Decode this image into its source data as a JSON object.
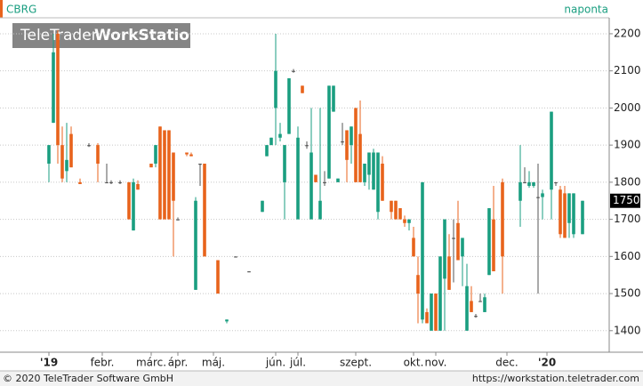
{
  "chart_data": {
    "type": "candlestick",
    "symbol": "CBRG",
    "period": "naponta",
    "watermark": [
      "TeleTrader",
      "WorkStation"
    ],
    "footer": {
      "copyright": "© 2020 TeleTrader Software GmbH",
      "url": "https://workstation.teletrader.com"
    },
    "up_color": "#1a9e80",
    "down_color": "#e8631c",
    "grid": true,
    "ylim": [
      1342,
      2243
    ],
    "yticks": [
      1400,
      1500,
      1600,
      1700,
      1800,
      1900,
      2000,
      2100,
      2200
    ],
    "xlim": [
      -10,
      127
    ],
    "xticks": [
      {
        "value": 1,
        "label": "'19"
      },
      {
        "value": 13,
        "label": "febr."
      },
      {
        "value": 24,
        "label": "márc."
      },
      {
        "value": 30,
        "label": "ápr."
      },
      {
        "value": 38,
        "label": "máj."
      },
      {
        "value": 52,
        "label": "jún."
      },
      {
        "value": 57,
        "label": "júl."
      },
      {
        "value": 70,
        "label": "szept."
      },
      {
        "value": 83,
        "label": "okt."
      },
      {
        "value": 88,
        "label": "nov."
      },
      {
        "value": 104,
        "label": "dec."
      },
      {
        "value": 113,
        "label": "'20"
      }
    ],
    "last_price": 1750,
    "x": [
      1,
      2,
      3,
      4,
      5,
      6,
      8,
      10,
      12,
      14,
      15,
      17,
      19,
      20,
      21,
      24,
      25,
      26,
      27,
      28,
      29,
      30,
      32,
      33,
      34,
      35,
      36,
      39,
      41,
      43,
      46,
      49,
      50,
      51,
      52,
      53,
      54,
      55,
      56,
      57,
      58,
      59,
      60,
      61,
      62,
      63,
      64,
      65,
      66,
      67,
      68,
      69,
      70,
      71,
      72,
      73,
      74,
      75,
      76,
      78,
      79,
      80,
      81,
      82,
      83,
      84,
      85,
      86,
      87,
      88,
      89,
      90,
      91,
      92,
      93,
      94,
      95,
      96,
      97,
      98,
      99,
      100,
      101,
      103,
      107,
      108,
      109,
      110,
      111,
      112,
      114,
      115,
      116,
      117,
      118,
      119,
      121
    ],
    "open": [
      1850,
      1960,
      2200,
      1900,
      1830,
      1930,
      1800,
      1900,
      1900,
      1800,
      1800,
      1800,
      1800,
      1670,
      1795,
      1850,
      1850,
      1950,
      1940,
      1940,
      1880,
      1700,
      1880,
      1875,
      1510,
      1850,
      1850,
      1590,
      1425,
      1600,
      1560,
      1720,
      1870,
      1900,
      2000,
      1920,
      1800,
      1930,
      2100,
      1700,
      2060,
      1900,
      1700,
      1820,
      1700,
      1800,
      1810,
      1990,
      1800,
      1910,
      1940,
      1900,
      2000,
      1930,
      1800,
      1820,
      1780,
      1720,
      1850,
      1750,
      1750,
      1730,
      1700,
      1690,
      1650,
      1550,
      1430,
      1450,
      1400,
      1500,
      1400,
      1540,
      1600,
      1650,
      1690,
      1600,
      1400,
      1480,
      1440,
      1480,
      1450,
      1550,
      1700,
      1800,
      1750,
      1800,
      1790,
      1790,
      1760,
      1760,
      1780,
      1800,
      1780,
      1770,
      1690,
      1660,
      1660
    ],
    "high": [
      1900,
      2200,
      2210,
      1950,
      1960,
      1950,
      1810,
      1905,
      1905,
      1850,
      1805,
      1805,
      1800,
      1810,
      1805,
      1850,
      1900,
      1950,
      1940,
      1940,
      1880,
      1705,
      1880,
      1880,
      1760,
      1850,
      1850,
      1590,
      1430,
      1600,
      1560,
      1750,
      1900,
      1920,
      2200,
      1960,
      1900,
      2080,
      2105,
      1950,
      2060,
      1910,
      2000,
      1820,
      2000,
      1830,
      2060,
      2060,
      1810,
      1960,
      1940,
      1950,
      2000,
      2020,
      1850,
      1880,
      1890,
      1880,
      1870,
      1750,
      1750,
      1730,
      1710,
      1700,
      1680,
      1600,
      1800,
      1460,
      1500,
      1500,
      1600,
      1700,
      1660,
      1700,
      1750,
      1650,
      1580,
      1520,
      1445,
      1500,
      1500,
      1730,
      1790,
      1810,
      1900,
      1840,
      1830,
      1800,
      1850,
      1780,
      1990,
      1800,
      1790,
      1790,
      1770,
      1770,
      1750
    ],
    "low": [
      1800,
      1960,
      1850,
      1800,
      1800,
      1840,
      1795,
      1895,
      1800,
      1800,
      1795,
      1795,
      1700,
      1670,
      1780,
      1840,
      1840,
      1700,
      1700,
      1700,
      1600,
      1700,
      1870,
      1870,
      1510,
      1790,
      1600,
      1500,
      1420,
      1600,
      1560,
      1720,
      1870,
      1900,
      1900,
      1910,
      1700,
      1930,
      2095,
      1700,
      2040,
      1890,
      1700,
      1800,
      1700,
      1790,
      1810,
      1990,
      1800,
      1900,
      1800,
      1850,
      1800,
      1800,
      1790,
      1780,
      1780,
      1700,
      1750,
      1700,
      1700,
      1700,
      1680,
      1670,
      1600,
      1420,
      1420,
      1420,
      1400,
      1400,
      1400,
      1400,
      1510,
      1530,
      1590,
      1520,
      1400,
      1450,
      1435,
      1480,
      1450,
      1550,
      1560,
      1500,
      1680,
      1800,
      1785,
      1785,
      1500,
      1700,
      1700,
      1790,
      1650,
      1650,
      1650,
      1650,
      1660
    ],
    "close": [
      1900,
      2150,
      1900,
      1810,
      1860,
      1840,
      1795,
      1900,
      1850,
      1800,
      1800,
      1800,
      1700,
      1800,
      1780,
      1840,
      1900,
      1700,
      1700,
      1700,
      1750,
      1700,
      1875,
      1870,
      1750,
      1850,
      1600,
      1500,
      1430,
      1600,
      1560,
      1750,
      1900,
      1920,
      2100,
      1930,
      1900,
      2080,
      2100,
      1920,
      2040,
      1900,
      1880,
      1800,
      1750,
      1800,
      2060,
      2060,
      1810,
      1910,
      1860,
      1950,
      1800,
      1800,
      1850,
      1880,
      1880,
      1880,
      1750,
      1720,
      1700,
      1700,
      1690,
      1700,
      1600,
      1500,
      1800,
      1420,
      1500,
      1400,
      1600,
      1700,
      1510,
      1650,
      1590,
      1650,
      1520,
      1450,
      1440,
      1480,
      1490,
      1730,
      1560,
      1600,
      1800,
      1800,
      1800,
      1800,
      1760,
      1770,
      1990,
      1800,
      1660,
      1650,
      1770,
      1770,
      1750
    ]
  }
}
